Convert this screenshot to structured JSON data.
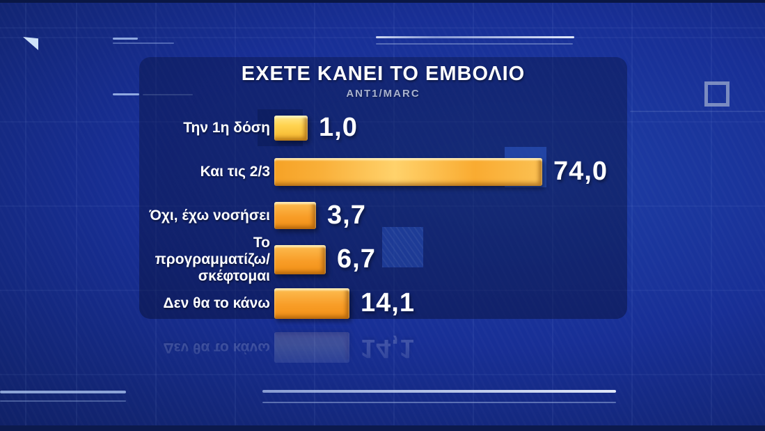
{
  "panel": {
    "title": "ΕΧΕΤΕ ΚΑΝΕΙ ΤΟ ΕΜΒΟΛΙΟ",
    "source": "ANT1/MARC"
  },
  "chart_data": {
    "type": "bar",
    "orientation": "horizontal",
    "title": "ΕΧΕΤΕ ΚΑΝΕΙ ΤΟ ΕΜΒΟΛΙΟ",
    "source": "ANT1/MARC",
    "categories": [
      "Την 1η δόση",
      "Και τις 2/3",
      "Όχι, έχω νοσήσει",
      "Το προγραμματίζω/\nσκέφτομαι",
      "Δεν θα το κάνω"
    ],
    "values": [
      1.0,
      74.0,
      3.7,
      6.7,
      14.1
    ],
    "value_labels": [
      "1,0",
      "74,0",
      "3,7",
      "6,7",
      "14,1"
    ],
    "xlim": [
      0,
      80
    ],
    "bar_styles": [
      "yellow",
      "gold",
      "orange",
      "orange",
      "orange"
    ],
    "legend": "none",
    "grid": "off",
    "decimal_separator": ","
  },
  "colors": {
    "background": "#18309b",
    "panel": "rgba(8,17,60,0.42)",
    "bar_main": "#f89d27",
    "bar_highlight": "#ffd34f",
    "text": "#ffffff",
    "subtitle": "#a9b3cf"
  }
}
